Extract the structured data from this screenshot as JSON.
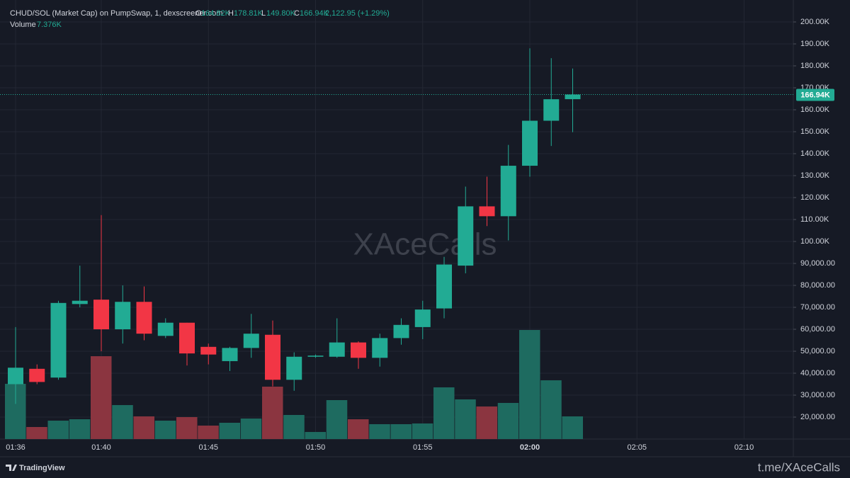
{
  "chart_data": {
    "type": "candlestick",
    "header": {
      "symbol": "CHUD/SOL (Market Cap) on PumpSwap, 1, dexscreener.com",
      "open_tag": "O",
      "open": "164.82K",
      "high_tag": "H",
      "high": "178.81K",
      "low_tag": "L",
      "low": "149.80K",
      "close_tag": "C",
      "close": "166.94K",
      "change": "2,122.95 (+1.29%)",
      "volume_tag": "Volume",
      "volume": "7.376K"
    },
    "watermark": "XAceCalls",
    "brand": "TradingView",
    "link": "t.me/XAceCalls",
    "categories": [
      "01:36",
      null,
      null,
      null,
      "01:40",
      null,
      null,
      null,
      null,
      "01:45",
      null,
      null,
      null,
      null,
      "01:50",
      null,
      null,
      null,
      null,
      "01:55",
      null,
      null,
      null,
      null,
      "02:00",
      null,
      null,
      null,
      null,
      "02:05",
      null,
      null,
      null,
      null,
      "02:10"
    ],
    "open": [
      35000,
      42000,
      38000,
      71500,
      73500,
      60000,
      72500,
      57000,
      63000,
      52000,
      45500,
      51500,
      57500,
      37000,
      47500,
      47500,
      54000,
      47000,
      56000,
      61000,
      69500,
      89000,
      116000,
      111500,
      134500,
      155000,
      164820,
      null,
      null,
      null,
      null,
      null,
      null,
      null,
      null
    ],
    "high": [
      61000,
      44000,
      73000,
      89000,
      112000,
      80000,
      79500,
      65000,
      63000,
      53500,
      52000,
      67000,
      64000,
      49500,
      48500,
      65000,
      54500,
      58000,
      65000,
      73000,
      93000,
      125000,
      129500,
      144000,
      188000,
      183500,
      178810,
      null,
      null,
      null,
      null,
      null,
      null,
      null,
      null
    ],
    "low": [
      26000,
      35000,
      37000,
      70000,
      50000,
      53500,
      55000,
      56000,
      43500,
      44000,
      41000,
      47000,
      34000,
      32000,
      47000,
      47000,
      42000,
      43000,
      53000,
      55500,
      65000,
      85500,
      107000,
      100500,
      129500,
      143500,
      149800,
      null,
      null,
      null,
      null,
      null,
      null,
      null,
      null
    ],
    "close": [
      42500,
      36000,
      72000,
      73000,
      60000,
      72500,
      58000,
      63000,
      49000,
      48500,
      51500,
      58000,
      37000,
      47500,
      48000,
      54000,
      47000,
      56000,
      62000,
      69000,
      89500,
      116000,
      111500,
      134500,
      155000,
      164800,
      166940,
      null,
      null,
      null,
      null,
      null,
      null,
      null,
      null
    ],
    "volume": [
      17980,
      3920,
      5990,
      6450,
      26970,
      11060,
      7380,
      5990,
      7150,
      4380,
      5300,
      6680,
      17060,
      7840,
      2300,
      12680,
      6450,
      4840,
      4840,
      5070,
      16830,
      12910,
      10600,
      11760,
      35500,
      19130,
      7376,
      null,
      null,
      null,
      null,
      null,
      null,
      null,
      null
    ],
    "up_color": "#22ab94",
    "down_color": "#f23645",
    "volume_up_color": "#1e6b60",
    "volume_down_color": "#8b3540",
    "ylim": [
      10000,
      210000
    ],
    "yticks": [
      {
        "value": 20000,
        "label": "20,000.00"
      },
      {
        "value": 30000,
        "label": "30,000.00"
      },
      {
        "value": 40000,
        "label": "40,000.00"
      },
      {
        "value": 50000,
        "label": "50,000.00"
      },
      {
        "value": 60000,
        "label": "60,000.00"
      },
      {
        "value": 70000,
        "label": "70,000.00"
      },
      {
        "value": 80000,
        "label": "80,000.00"
      },
      {
        "value": 90000,
        "label": "90,000.00"
      },
      {
        "value": 100000,
        "label": "100.00K"
      },
      {
        "value": 110000,
        "label": "110.00K"
      },
      {
        "value": 120000,
        "label": "120.00K"
      },
      {
        "value": 130000,
        "label": "130.00K"
      },
      {
        "value": 140000,
        "label": "140.00K"
      },
      {
        "value": 150000,
        "label": "150.00K"
      },
      {
        "value": 160000,
        "label": "160.00K"
      },
      {
        "value": 170000,
        "label": "170.00K"
      },
      {
        "value": 180000,
        "label": "180.00K"
      },
      {
        "value": 190000,
        "label": "190.00K"
      },
      {
        "value": 200000,
        "label": "200.00K"
      }
    ],
    "grid": true
  }
}
